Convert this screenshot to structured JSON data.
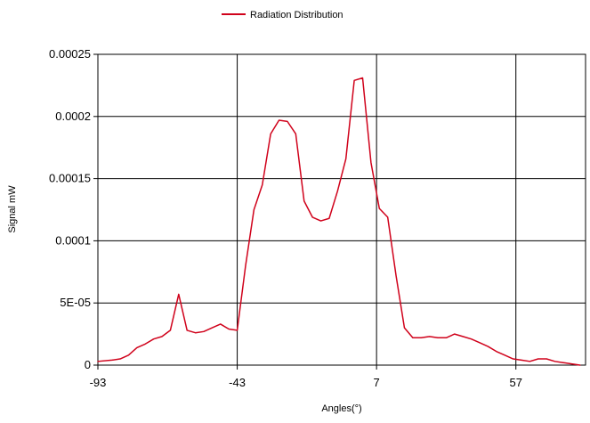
{
  "chart_data": {
    "type": "line",
    "title": "",
    "xlabel": "Angles(°)",
    "ylabel": "Signal mW",
    "xlim": [
      -93,
      82
    ],
    "ylim": [
      0,
      0.00025
    ],
    "x_ticks": [
      -93,
      -43,
      7,
      57
    ],
    "x_tick_labels": [
      "-93",
      "-43",
      "7",
      "57"
    ],
    "y_ticks": [
      0,
      5e-05,
      0.0001,
      0.00015,
      0.0002,
      0.00025
    ],
    "y_tick_labels": [
      "0",
      "5E-05",
      "0.0001",
      "0.00015",
      "0.0002",
      "0.00025"
    ],
    "grid": true,
    "legend_position": "top-center",
    "series": [
      {
        "name": "Radiation Distribution",
        "color": "#d0021b",
        "points": [
          [
            -93,
            3e-06
          ],
          [
            -88,
            4e-06
          ],
          [
            -85,
            5e-06
          ],
          [
            -82,
            8e-06
          ],
          [
            -79,
            1.4e-05
          ],
          [
            -76,
            1.7e-05
          ],
          [
            -73,
            2.1e-05
          ],
          [
            -70,
            2.3e-05
          ],
          [
            -67,
            2.8e-05
          ],
          [
            -64,
            5.7e-05
          ],
          [
            -61,
            2.8e-05
          ],
          [
            -58,
            2.6e-05
          ],
          [
            -55,
            2.7e-05
          ],
          [
            -52,
            3e-05
          ],
          [
            -49,
            3.3e-05
          ],
          [
            -46,
            2.9e-05
          ],
          [
            -43,
            2.8e-05
          ],
          [
            -40,
            8e-05
          ],
          [
            -37,
            0.000125
          ],
          [
            -34,
            0.000145
          ],
          [
            -31,
            0.000186
          ],
          [
            -28,
            0.000197
          ],
          [
            -25,
            0.000196
          ],
          [
            -22,
            0.000186
          ],
          [
            -19,
            0.000132
          ],
          [
            -16,
            0.000119
          ],
          [
            -13,
            0.000116
          ],
          [
            -10,
            0.000118
          ],
          [
            -7,
            0.00014
          ],
          [
            -4,
            0.000166
          ],
          [
            -1,
            0.000229
          ],
          [
            2,
            0.000231
          ],
          [
            5,
            0.000163
          ],
          [
            8,
            0.000126
          ],
          [
            11,
            0.000119
          ],
          [
            14,
            7.2e-05
          ],
          [
            17,
            3e-05
          ],
          [
            20,
            2.2e-05
          ],
          [
            23,
            2.2e-05
          ],
          [
            26,
            2.3e-05
          ],
          [
            29,
            2.2e-05
          ],
          [
            32,
            2.2e-05
          ],
          [
            35,
            2.5e-05
          ],
          [
            38,
            2.3e-05
          ],
          [
            41,
            2.1e-05
          ],
          [
            44,
            1.8e-05
          ],
          [
            47,
            1.5e-05
          ],
          [
            50,
            1.1e-05
          ],
          [
            53,
            8e-06
          ],
          [
            56,
            5e-06
          ],
          [
            59,
            4e-06
          ],
          [
            62,
            3e-06
          ],
          [
            65,
            5e-06
          ],
          [
            68,
            5e-06
          ],
          [
            71,
            3e-06
          ],
          [
            74,
            2e-06
          ],
          [
            77,
            1e-06
          ],
          [
            80,
            0
          ]
        ]
      }
    ]
  }
}
